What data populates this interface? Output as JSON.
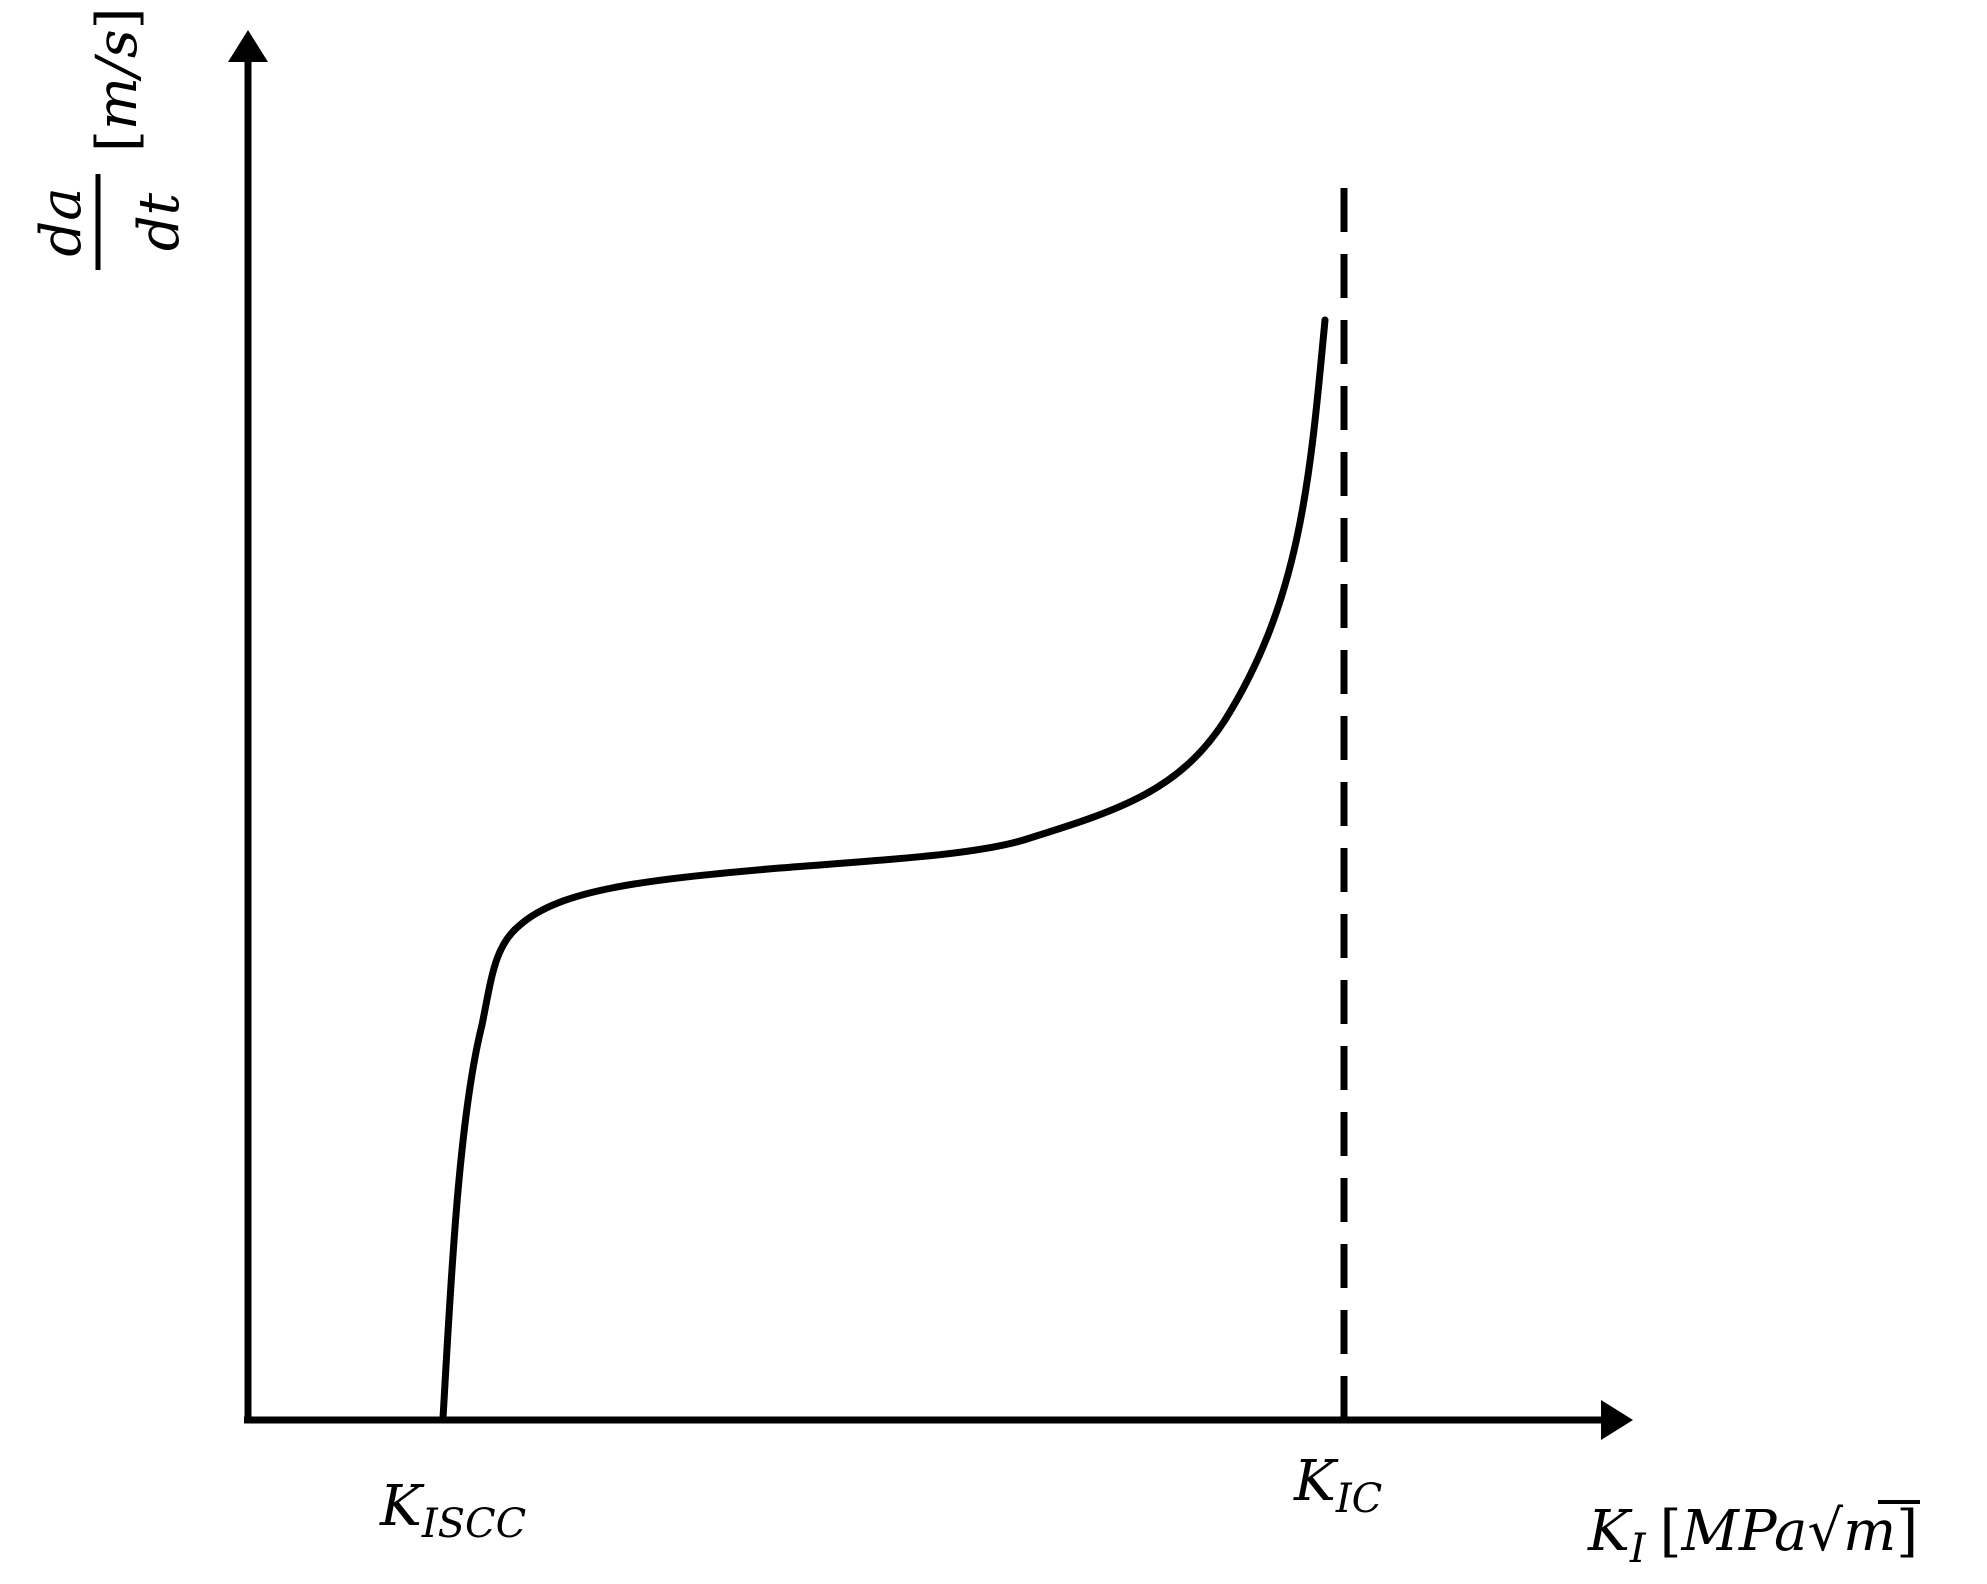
{
  "diagram": {
    "y_axis_label": {
      "numerator": "da",
      "denominator": "dt",
      "unit_open": "[",
      "unit": "m/s",
      "unit_close": "]"
    },
    "x_axis_label": {
      "symbol": "K",
      "subscript": "I",
      "unit_open": "[",
      "unit_prefix": "MPa",
      "radical": "√",
      "unit_radicand": "m",
      "unit_close": "]"
    },
    "marks": {
      "kiscc": {
        "symbol": "K",
        "subscript": "ISCC"
      },
      "kic": {
        "symbol": "K",
        "subscript": "IC"
      }
    },
    "colors": {
      "ink": "#000000",
      "background": "#ffffff"
    }
  }
}
